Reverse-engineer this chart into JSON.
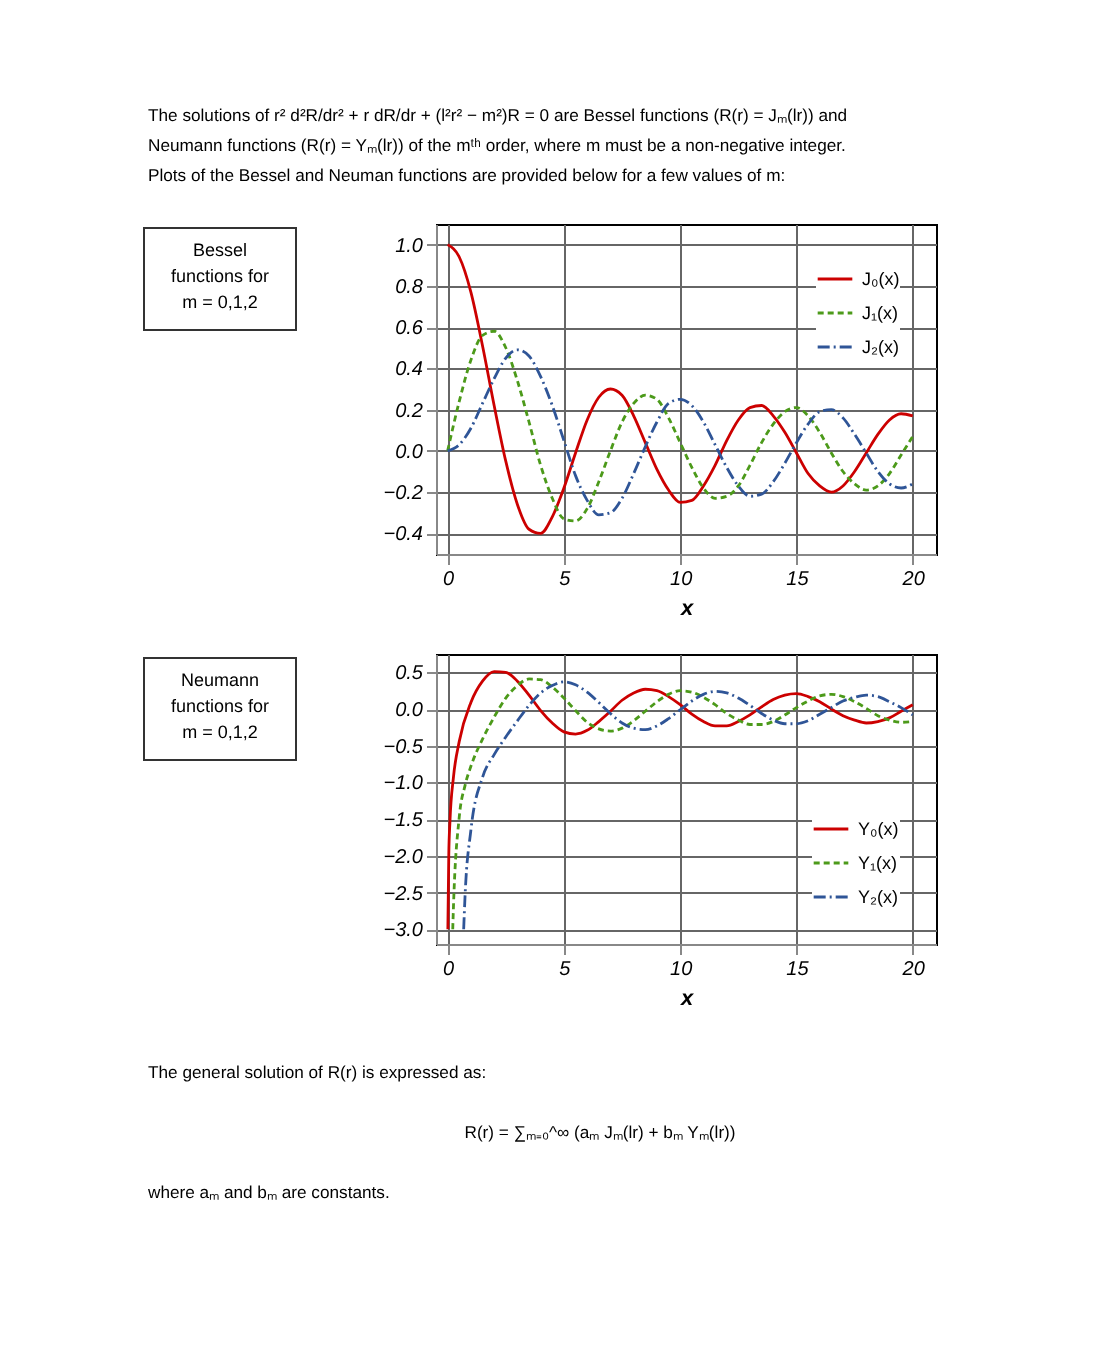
{
  "chart_data": [
    {
      "type": "line",
      "xlabel": "x",
      "xlim": [
        -0.5,
        21
      ],
      "xticks": [
        0,
        5,
        10,
        15,
        20
      ],
      "ylim": [
        -0.5,
        1.1
      ],
      "yticks": [
        {
          "value": -0.4,
          "label": "−0.4"
        },
        {
          "value": -0.2,
          "label": "−0.2"
        },
        {
          "value": 0,
          "label": "0.0"
        },
        {
          "value": 0.2,
          "label": "0.2"
        },
        {
          "value": 0.4,
          "label": "0.4"
        },
        {
          "value": 0.6,
          "label": "0.6"
        },
        {
          "value": 0.8,
          "label": "0.8"
        },
        {
          "value": 1,
          "label": "1.0"
        }
      ],
      "grid": true,
      "legend": "top right",
      "annotations": [
        "The solutions of r² d²R/dr² + r dR/dr + (l²r² − m²)R = 0 are Bessel functions (R(r) = Jₘ(lr)) and",
        "Neumann functions (R(r) = Yₘ(lr)) of the mᵗʰ order, where m must be a non-negative integer.",
        "Plots of the Bessel and Neuman functions are provided below for a few values of m:",
        "Bessel\nfunctions for\nm = 0,1,2"
      ],
      "x": [
        0,
        0.5,
        1,
        1.5,
        2,
        2.5,
        3,
        3.5,
        4,
        4.5,
        5,
        5.5,
        6,
        6.5,
        7,
        7.5,
        8,
        8.5,
        9,
        9.5,
        10,
        10.5,
        11,
        11.5,
        12,
        12.5,
        13,
        13.5,
        14,
        14.5,
        15,
        15.5,
        16,
        16.5,
        17,
        17.5,
        18,
        18.5,
        19,
        19.5,
        20
      ],
      "series": [
        {
          "name": "J₀(x)",
          "color": "#cc0000",
          "line_style": "solid",
          "values": [
            1.0,
            0.94,
            0.77,
            0.51,
            0.22,
            -0.05,
            -0.26,
            -0.38,
            -0.4,
            -0.32,
            -0.18,
            -0.01,
            0.15,
            0.26,
            0.3,
            0.27,
            0.17,
            0.04,
            -0.09,
            -0.19,
            -0.25,
            -0.24,
            -0.17,
            -0.07,
            0.05,
            0.15,
            0.21,
            0.22,
            0.17,
            0.09,
            -0.01,
            -0.11,
            -0.17,
            -0.2,
            -0.17,
            -0.1,
            -0.01,
            0.08,
            0.15,
            0.18,
            0.17
          ]
        },
        {
          "name": "J₁(x)",
          "color": "#4c9a1a",
          "line_style": "dashed",
          "values": [
            0.0,
            0.24,
            0.44,
            0.56,
            0.58,
            0.5,
            0.34,
            0.14,
            -0.07,
            -0.23,
            -0.33,
            -0.34,
            -0.28,
            -0.15,
            0.0,
            0.14,
            0.23,
            0.27,
            0.25,
            0.16,
            0.04,
            -0.08,
            -0.18,
            -0.23,
            -0.22,
            -0.17,
            -0.07,
            0.04,
            0.13,
            0.19,
            0.21,
            0.17,
            0.09,
            -0.01,
            -0.1,
            -0.16,
            -0.19,
            -0.17,
            -0.11,
            -0.02,
            0.07
          ]
        },
        {
          "name": "J₂(x)",
          "color": "#2f5597",
          "line_style": "dashdot",
          "values": [
            0.0,
            0.03,
            0.11,
            0.23,
            0.35,
            0.45,
            0.49,
            0.46,
            0.36,
            0.22,
            0.05,
            -0.12,
            -0.24,
            -0.31,
            -0.3,
            -0.23,
            -0.11,
            0.02,
            0.14,
            0.23,
            0.25,
            0.22,
            0.14,
            0.03,
            -0.08,
            -0.17,
            -0.22,
            -0.21,
            -0.15,
            -0.06,
            0.04,
            0.13,
            0.19,
            0.2,
            0.16,
            0.08,
            -0.01,
            -0.1,
            -0.16,
            -0.18,
            -0.16
          ]
        }
      ]
    },
    {
      "type": "line",
      "xlabel": "x",
      "xlim": [
        -0.5,
        21
      ],
      "xticks": [
        0,
        5,
        10,
        15,
        20
      ],
      "ylim": [
        -3.2,
        0.75
      ],
      "yticks": [
        {
          "value": -3,
          "label": "−3.0"
        },
        {
          "value": -2.5,
          "label": "−2.5"
        },
        {
          "value": -2,
          "label": "−2.0"
        },
        {
          "value": -1.5,
          "label": "−1.5"
        },
        {
          "value": -1,
          "label": "−1.0"
        },
        {
          "value": -0.5,
          "label": "−0.5"
        },
        {
          "value": 0,
          "label": "0.0"
        },
        {
          "value": 0.5,
          "label": "0.5"
        }
      ],
      "grid": true,
      "legend": "bottom right",
      "annotations": [
        "Neumann\nfunctions for\nm = 0,1,2",
        "The general solution of R(r) is expressed as:",
        "R(r) = ∑ₘ₌₀^∞ (aₘ Jₘ(lr) + bₘ Yₘ(lr))",
        "where aₘ and bₘ are constants."
      ],
      "series": [
        {
          "name": "Y₀(x)",
          "color": "#cc0000",
          "line_style": "solid",
          "x": [
            0.01,
            0.05,
            0.1,
            0.25,
            0.5,
            1,
            1.5,
            2,
            2.5,
            3,
            3.5,
            4,
            4.5,
            5,
            5.5,
            6,
            6.5,
            7,
            7.5,
            8,
            8.5,
            9,
            9.5,
            10,
            10.5,
            11,
            11.5,
            12,
            12.5,
            13,
            13.5,
            14,
            14.5,
            15,
            15.5,
            16,
            16.5,
            17,
            17.5,
            18,
            18.5,
            19,
            19.5,
            20
          ],
          "values": [
            -3.0,
            -1.98,
            -1.53,
            -0.93,
            -0.44,
            0.09,
            0.38,
            0.51,
            0.5,
            0.38,
            0.19,
            -0.02,
            -0.19,
            -0.31,
            -0.34,
            -0.29,
            -0.17,
            -0.03,
            0.12,
            0.22,
            0.27,
            0.25,
            0.17,
            0.06,
            -0.07,
            -0.17,
            -0.23,
            -0.23,
            -0.17,
            -0.08,
            0.03,
            0.13,
            0.19,
            0.21,
            0.17,
            0.1,
            0.0,
            -0.09,
            -0.15,
            -0.19,
            -0.17,
            -0.12,
            -0.03,
            0.06
          ]
        },
        {
          "name": "Y₁(x)",
          "color": "#4c9a1a",
          "line_style": "dashed",
          "x": [
            0.22,
            0.25,
            0.5,
            0.75,
            1,
            1.5,
            2,
            2.5,
            3,
            3.5,
            4,
            4.5,
            5,
            5.5,
            6,
            6.5,
            7,
            7.5,
            8,
            8.5,
            9,
            9.5,
            10,
            10.5,
            11,
            11.5,
            12,
            12.5,
            13,
            13.5,
            14,
            14.5,
            15,
            15.5,
            16,
            16.5,
            17,
            17.5,
            18,
            18.5,
            19,
            19.5,
            20
          ],
          "values": [
            -3.0,
            -2.7,
            -1.47,
            -1.04,
            -0.78,
            -0.41,
            -0.11,
            0.15,
            0.32,
            0.41,
            0.4,
            0.3,
            0.15,
            -0.02,
            -0.18,
            -0.27,
            -0.3,
            -0.26,
            -0.16,
            -0.03,
            0.1,
            0.2,
            0.25,
            0.23,
            0.16,
            0.06,
            -0.06,
            -0.15,
            -0.21,
            -0.21,
            -0.17,
            -0.08,
            0.02,
            0.11,
            0.18,
            0.2,
            0.17,
            0.1,
            0.01,
            -0.09,
            -0.15,
            -0.18,
            -0.17
          ]
        },
        {
          "name": "Y₂(x)",
          "color": "#2f5597",
          "line_style": "dashdot",
          "x": [
            0.69,
            0.75,
            1,
            1.5,
            2,
            2.5,
            3,
            3.5,
            4,
            4.5,
            5,
            5.5,
            6,
            6.5,
            7,
            7.5,
            8,
            8.5,
            9,
            9.5,
            10,
            10.5,
            11,
            11.5,
            12,
            12.5,
            13,
            13.5,
            14,
            14.5,
            15,
            15.5,
            16,
            16.5,
            17,
            17.5,
            18,
            18.5,
            19,
            19.5,
            20
          ],
          "values": [
            -3.0,
            -2.54,
            -1.65,
            -0.93,
            -0.62,
            -0.38,
            -0.16,
            0.05,
            0.22,
            0.32,
            0.37,
            0.33,
            0.23,
            0.09,
            -0.06,
            -0.19,
            -0.26,
            -0.28,
            -0.23,
            -0.13,
            -0.01,
            0.11,
            0.2,
            0.24,
            0.22,
            0.15,
            0.05,
            -0.06,
            -0.15,
            -0.2,
            -0.2,
            -0.16,
            -0.07,
            0.02,
            0.11,
            0.16,
            0.19,
            0.17,
            0.1,
            0.02,
            -0.08
          ]
        }
      ]
    }
  ]
}
